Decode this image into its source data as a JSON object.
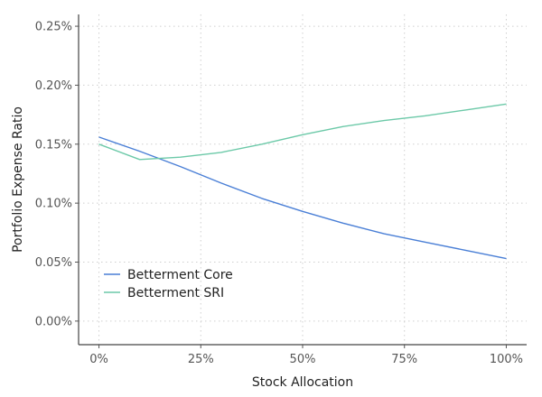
{
  "chart_data": {
    "type": "line",
    "xlabel": "Stock Allocation",
    "ylabel": "Portfolio Expense Ratio",
    "xlim": [
      -0.05,
      1.05
    ],
    "ylim": [
      -0.0002,
      0.0026
    ],
    "x_ticks": [
      0,
      0.25,
      0.5,
      0.75,
      1.0
    ],
    "x_tick_labels": [
      "0%",
      "25%",
      "50%",
      "75%",
      "100%"
    ],
    "y_ticks": [
      0,
      0.0005,
      0.001,
      0.0015,
      0.002,
      0.0025
    ],
    "y_tick_labels": [
      "0.00%",
      "0.05%",
      "0.10%",
      "0.15%",
      "0.20%",
      "0.25%"
    ],
    "grid": true,
    "legend_position": "bottom-left",
    "series": [
      {
        "name": "Betterment Core",
        "color": "#4a7fd6",
        "x": [
          0,
          0.1,
          0.2,
          0.3,
          0.4,
          0.5,
          0.6,
          0.7,
          0.8,
          0.9,
          1.0
        ],
        "y": [
          0.00156,
          0.00144,
          0.00131,
          0.00117,
          0.00104,
          0.00093,
          0.00083,
          0.00074,
          0.00067,
          0.0006,
          0.00053
        ]
      },
      {
        "name": "Betterment SRI",
        "color": "#6cc9a8",
        "x": [
          0,
          0.1,
          0.2,
          0.3,
          0.4,
          0.5,
          0.6,
          0.7,
          0.8,
          0.9,
          1.0
        ],
        "y": [
          0.0015,
          0.00137,
          0.00139,
          0.00143,
          0.0015,
          0.00158,
          0.00165,
          0.0017,
          0.00174,
          0.00179,
          0.00184
        ]
      }
    ]
  }
}
